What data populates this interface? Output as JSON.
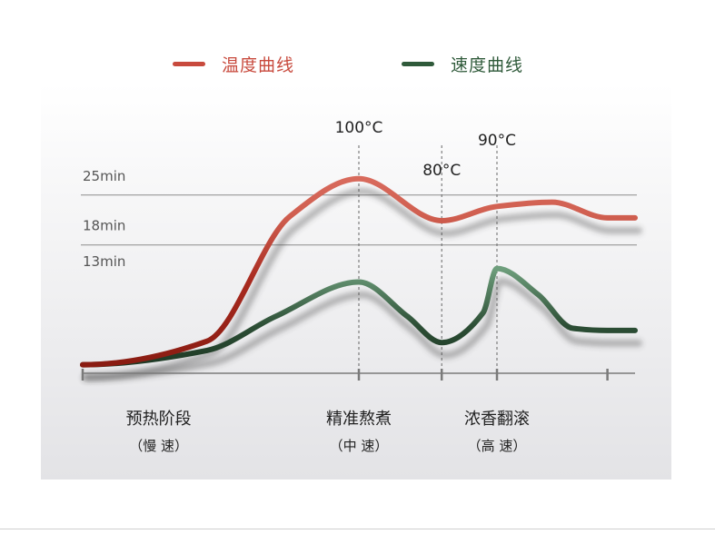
{
  "chart_data": {
    "type": "line",
    "title": "",
    "legend": {
      "position": "top-center"
    },
    "series": [
      {
        "name": "温度曲线",
        "color": "#c84a3d",
        "dark_color": "#8a1c12",
        "points": [
          [
            0,
            1.2
          ],
          [
            0.9,
            4.5
          ],
          [
            1.5,
            22
          ],
          [
            2.0,
            27.3
          ],
          [
            2.6,
            21.4
          ],
          [
            3.0,
            23.4
          ],
          [
            3.4,
            24.0
          ],
          [
            3.8,
            21.8
          ],
          [
            4.0,
            21.8
          ]
        ]
      },
      {
        "name": "速度曲线",
        "color": "#5e8d6c",
        "dark_color": "#1f3a26",
        "points": [
          [
            0,
            1.2
          ],
          [
            0.9,
            3.2
          ],
          [
            1.4,
            8.0
          ],
          [
            2.0,
            12.8
          ],
          [
            2.35,
            8.0
          ],
          [
            2.6,
            4.3
          ],
          [
            2.9,
            8.5
          ],
          [
            3.0,
            14.7
          ],
          [
            3.3,
            11.0
          ],
          [
            3.55,
            6.3
          ],
          [
            3.8,
            6.0
          ],
          [
            4.0,
            6.0
          ]
        ]
      }
    ],
    "y_ticks": [
      "13min",
      "18min",
      "25min"
    ],
    "gridlines": [
      "18min",
      "25min"
    ],
    "peak_labels": [
      {
        "text": "100°C",
        "x": 2.0
      },
      {
        "text": "80°C",
        "x": 2.6
      },
      {
        "text": "90°C",
        "x": 3.0
      }
    ],
    "x_ticks": [
      0,
      2.0,
      2.6,
      3.0,
      3.8
    ],
    "stages": [
      {
        "name": "预热阶段",
        "speed": "（慢 速）",
        "x": 0.55
      },
      {
        "name": "精准熬煮",
        "speed": "（中 速）",
        "x": 2.0
      },
      {
        "name": "浓香翻滚",
        "speed": "（高 速）",
        "x": 3.0
      }
    ]
  }
}
